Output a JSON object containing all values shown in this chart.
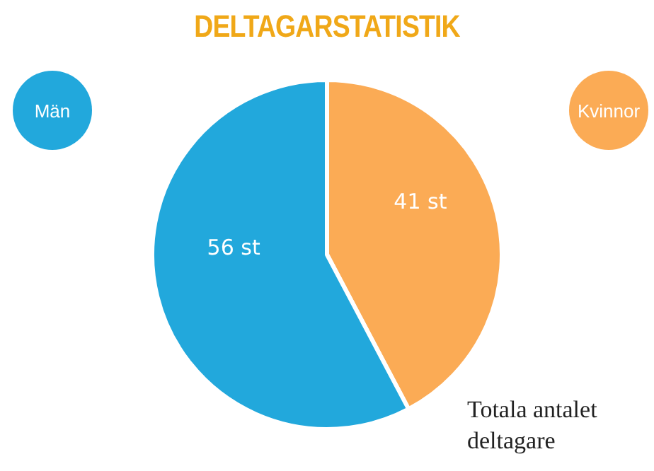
{
  "chart_data": {
    "type": "pie",
    "title": "DELTAGARSTATISTIK",
    "categories": [
      "Kvinnor",
      "Män"
    ],
    "values": [
      41,
      56
    ],
    "colors": [
      "#fbab55",
      "#22a8dc"
    ],
    "value_labels": [
      "41 st",
      "56 st"
    ],
    "annotations": [
      "Totala antalet deltagare"
    ]
  }
}
